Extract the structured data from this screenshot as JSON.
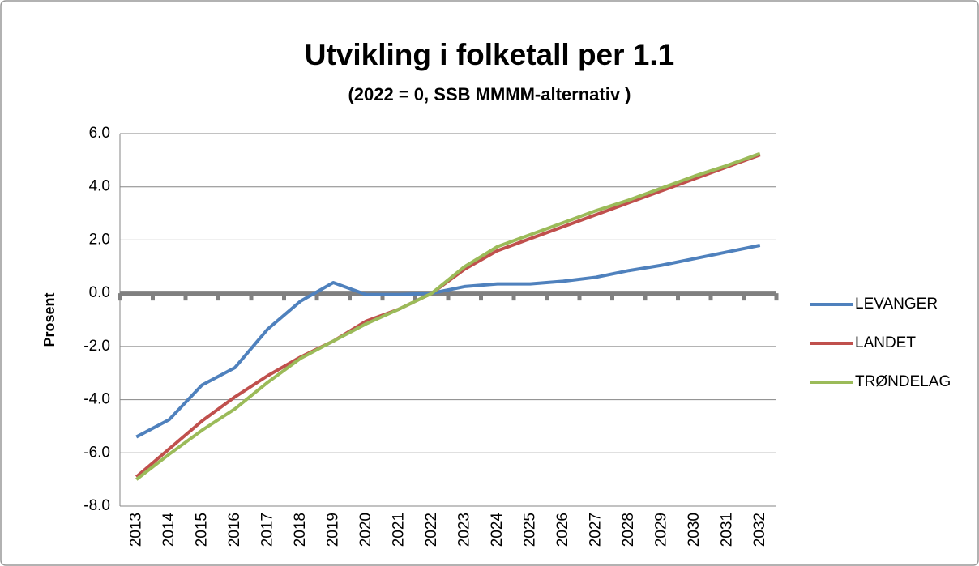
{
  "chart_data": {
    "type": "line",
    "title": "Utvikling i folketall per 1.1",
    "subtitle": "(2022 = 0, SSB MMMM-alternativ )",
    "y_label": "Prosent",
    "categories": [
      "2013",
      "2014",
      "2015",
      "2016",
      "2017",
      "2018",
      "2019",
      "2020",
      "2021",
      "2022",
      "2023",
      "2024",
      "2025",
      "2026",
      "2027",
      "2028",
      "2029",
      "2030",
      "2031",
      "2032"
    ],
    "series": [
      {
        "name": "LEVANGER",
        "color": "#4f81bd",
        "values": [
          -5.4,
          -4.75,
          -3.45,
          -2.8,
          -1.35,
          -0.3,
          0.4,
          -0.05,
          -0.05,
          0,
          0.25,
          0.35,
          0.35,
          0.45,
          0.6,
          0.85,
          1.05,
          1.3,
          1.55,
          1.8
        ]
      },
      {
        "name": "LANDET",
        "color": "#c0504d",
        "values": [
          -6.9,
          -5.85,
          -4.8,
          -3.9,
          -3.1,
          -2.4,
          -1.8,
          -1.05,
          -0.6,
          0,
          0.9,
          1.6,
          2.05,
          2.5,
          2.95,
          3.4,
          3.85,
          4.3,
          4.75,
          5.2
        ]
      },
      {
        "name": "TRØNDELAG",
        "color": "#9bbb59",
        "values": [
          -7.0,
          -6.05,
          -5.15,
          -4.35,
          -3.35,
          -2.45,
          -1.8,
          -1.15,
          -0.6,
          0,
          1.0,
          1.75,
          2.2,
          2.65,
          3.1,
          3.5,
          3.95,
          4.4,
          4.8,
          5.25
        ]
      }
    ],
    "ylim": [
      -8,
      6
    ],
    "yticks": [
      {
        "value": -8,
        "label": "-8.0"
      },
      {
        "value": -6,
        "label": "-6.0"
      },
      {
        "value": -4,
        "label": "-4.0"
      },
      {
        "value": -2,
        "label": "-2.0"
      },
      {
        "value": 0,
        "label": "0.0"
      },
      {
        "value": 2,
        "label": "2.0"
      },
      {
        "value": 4,
        "label": "4.0"
      },
      {
        "value": 6,
        "label": "6.0"
      }
    ],
    "grid": true,
    "legend": "right"
  }
}
